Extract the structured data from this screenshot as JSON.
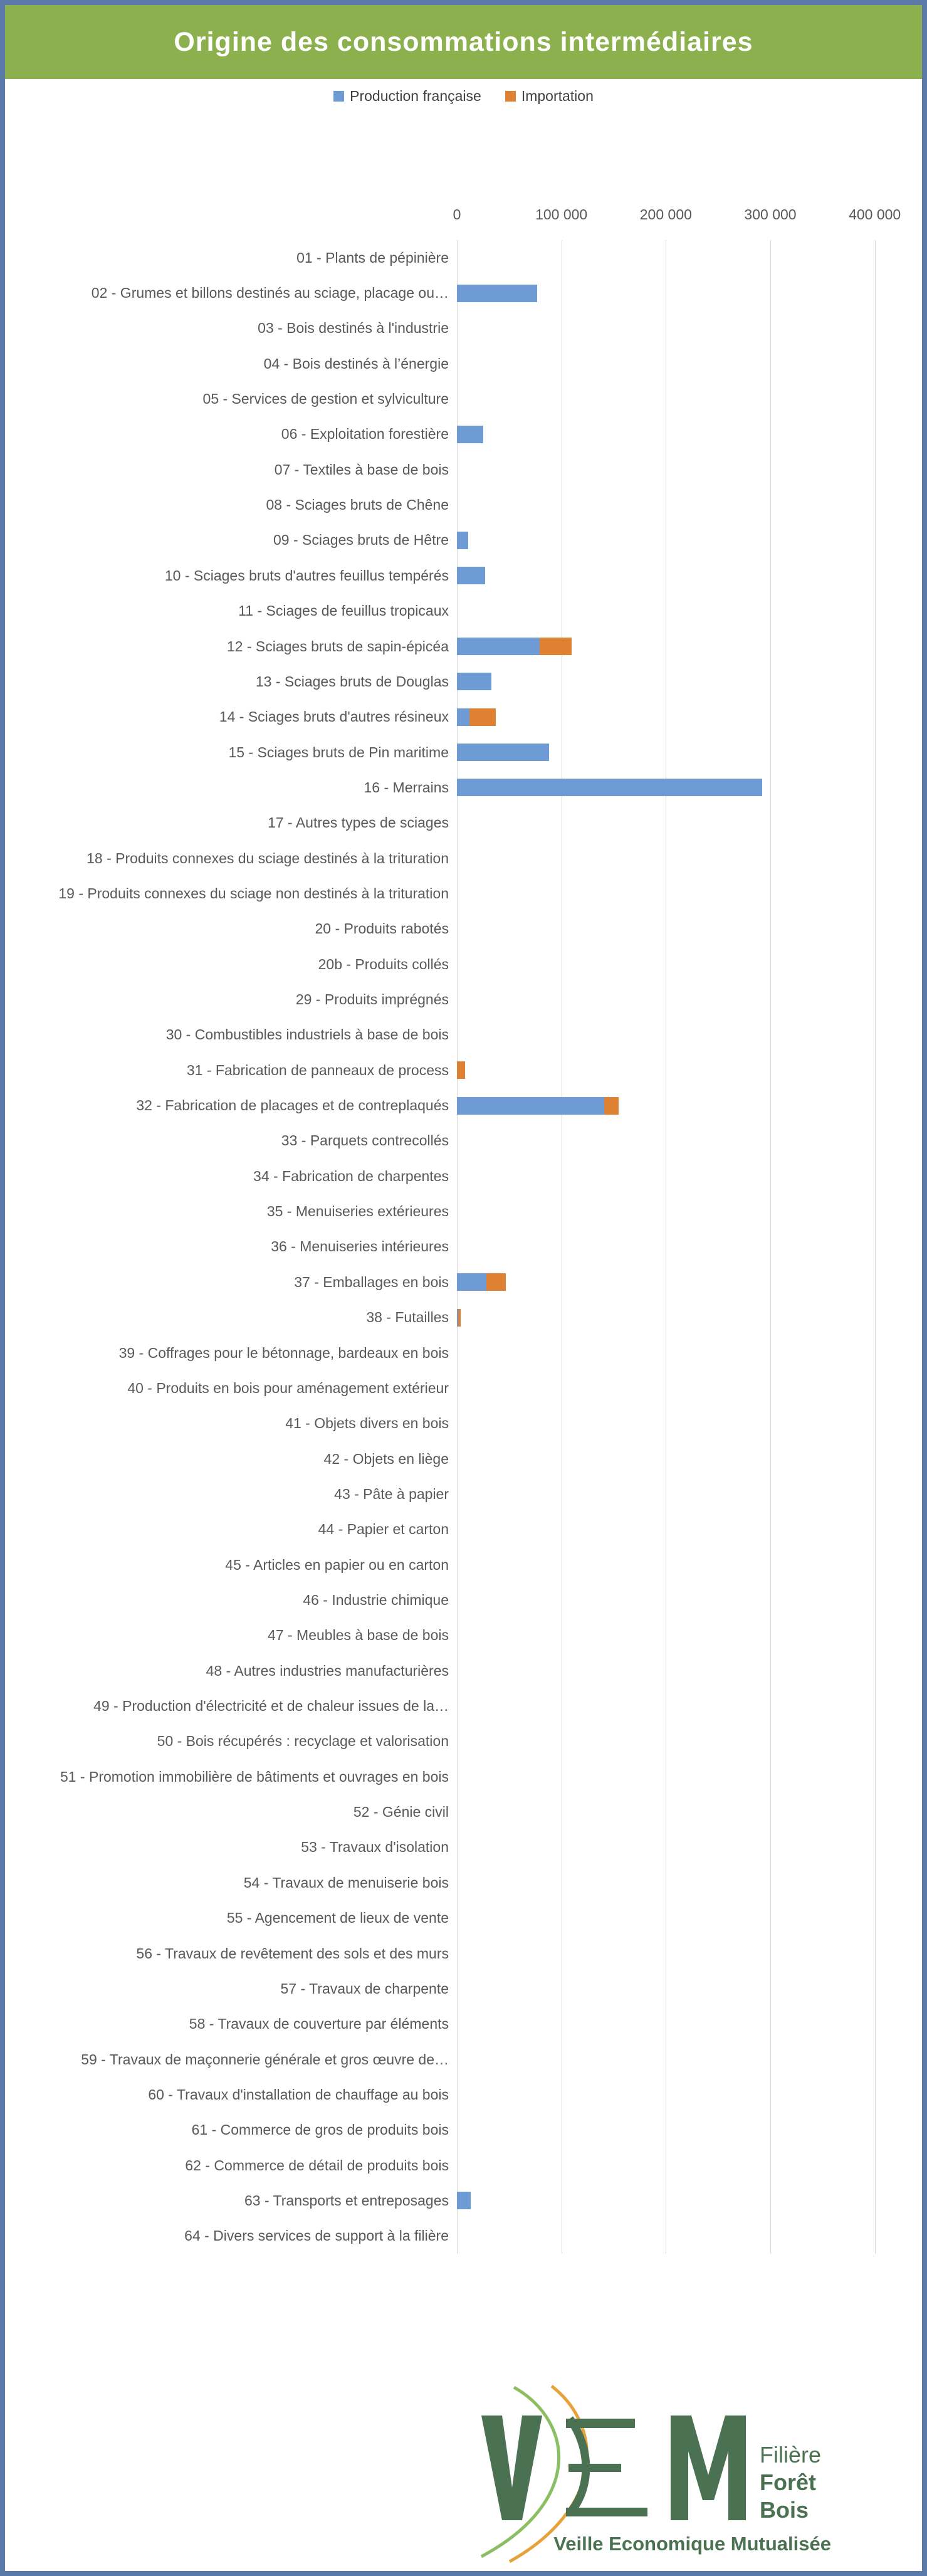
{
  "header": {
    "title": "Origine des consommations intermédiaires"
  },
  "legend": {
    "items": [
      {
        "label": "Production française",
        "color": "#6E9BD3"
      },
      {
        "label": "Importation",
        "color": "#DE8133"
      }
    ]
  },
  "chart_data": {
    "type": "bar",
    "orientation": "horizontal",
    "stacked": true,
    "title": "Origine des consommations intermédiaires",
    "xlabel": "",
    "ylabel": "",
    "xlim": [
      0,
      420000
    ],
    "xticks": [
      0,
      100000,
      200000,
      300000,
      400000
    ],
    "xtick_labels": [
      "0",
      "100 000",
      "200 000",
      "300 000",
      "400 000"
    ],
    "grid": true,
    "legend_position": "top",
    "categories": [
      "01 - Plants de pépinière",
      "02 - Grumes et billons destinés au sciage, placage ou…",
      "03 - Bois destinés à l'industrie",
      "04 - Bois destinés à l’énergie",
      "05 - Services de gestion et sylviculture",
      "06 - Exploitation forestière",
      "07 - Textiles à base de bois",
      "08 - Sciages bruts de Chêne",
      "09 - Sciages bruts de Hêtre",
      "10 - Sciages bruts d'autres feuillus tempérés",
      "11 - Sciages de feuillus tropicaux",
      "12 - Sciages bruts de sapin-épicéa",
      "13 - Sciages bruts de Douglas",
      "14 - Sciages bruts d'autres résineux",
      "15 - Sciages bruts de Pin maritime",
      "16 - Merrains",
      "17 - Autres types de sciages",
      "18 - Produits connexes du sciage destinés à la trituration",
      "19 - Produits connexes du sciage non destinés à la trituration",
      "20 - Produits rabotés",
      "20b - Produits collés",
      "29 - Produits imprégnés",
      "30 - Combustibles industriels à base de bois",
      "31 - Fabrication de panneaux de process",
      "32 - Fabrication de placages et de contreplaqués",
      "33 - Parquets contrecollés",
      "34 - Fabrication de charpentes",
      "35 - Menuiseries extérieures",
      "36 - Menuiseries intérieures",
      "37 - Emballages en bois",
      "38 - Futailles",
      "39 - Coffrages pour le bétonnage, bardeaux en bois",
      "40 - Produits en bois pour aménagement extérieur",
      "41 - Objets divers en bois",
      "42 - Objets en liège",
      "43 - Pâte à papier",
      "44 - Papier et carton",
      "45 - Articles en papier ou en carton",
      "46 - Industrie chimique",
      "47 - Meubles à base de bois",
      "48 - Autres industries manufacturières",
      "49 - Production d'électricité et de chaleur issues de la…",
      "50 - Bois récupérés : recyclage et valorisation",
      "51 - Promotion immobilière de bâtiments et ouvrages en bois",
      "52 - Génie civil",
      "53 - Travaux d'isolation",
      "54 - Travaux de menuiserie bois",
      "55 - Agencement de lieux de vente",
      "56 - Travaux de revêtement des sols et des murs",
      "57 - Travaux de charpente",
      "58 - Travaux de couverture par éléments",
      "59 - Travaux de maçonnerie générale et gros œuvre de…",
      "60 - Travaux d'installation de chauffage au bois",
      "61 - Commerce de gros de produits bois",
      "62 - Commerce de détail de produits bois",
      "63 - Transports et entreposages",
      "64 - Divers services de support à la filière"
    ],
    "series": [
      {
        "name": "Production française",
        "color": "#6E9BD3",
        "values": [
          0,
          77000,
          0,
          0,
          0,
          25000,
          0,
          0,
          11000,
          27000,
          0,
          79000,
          33000,
          12000,
          88000,
          292000,
          0,
          0,
          0,
          0,
          0,
          0,
          0,
          0,
          141000,
          0,
          0,
          0,
          0,
          28000,
          1000,
          0,
          0,
          0,
          0,
          0,
          0,
          0,
          0,
          0,
          0,
          0,
          0,
          0,
          0,
          0,
          0,
          0,
          0,
          0,
          0,
          0,
          0,
          0,
          0,
          13000,
          0
        ]
      },
      {
        "name": "Importation",
        "color": "#DE8133",
        "values": [
          0,
          0,
          0,
          0,
          0,
          0,
          0,
          0,
          0,
          0,
          0,
          31000,
          0,
          25000,
          0,
          0,
          0,
          0,
          0,
          0,
          0,
          0,
          0,
          8000,
          14000,
          0,
          0,
          0,
          0,
          19000,
          2500,
          0,
          0,
          0,
          0,
          0,
          0,
          0,
          0,
          0,
          0,
          0,
          0,
          0,
          0,
          0,
          0,
          0,
          0,
          0,
          0,
          0,
          0,
          0,
          0,
          0,
          0
        ]
      }
    ]
  },
  "footer_logo": {
    "acronym": "VEM",
    "right_lines": {
      "line1": "Filière",
      "line2": "Forêt",
      "line3": "Bois"
    },
    "tagline": "Veille Economique Mutualisée",
    "dark_green": "#4A7152",
    "light_green": "#8BBE63",
    "gold": "#E6A33C"
  }
}
